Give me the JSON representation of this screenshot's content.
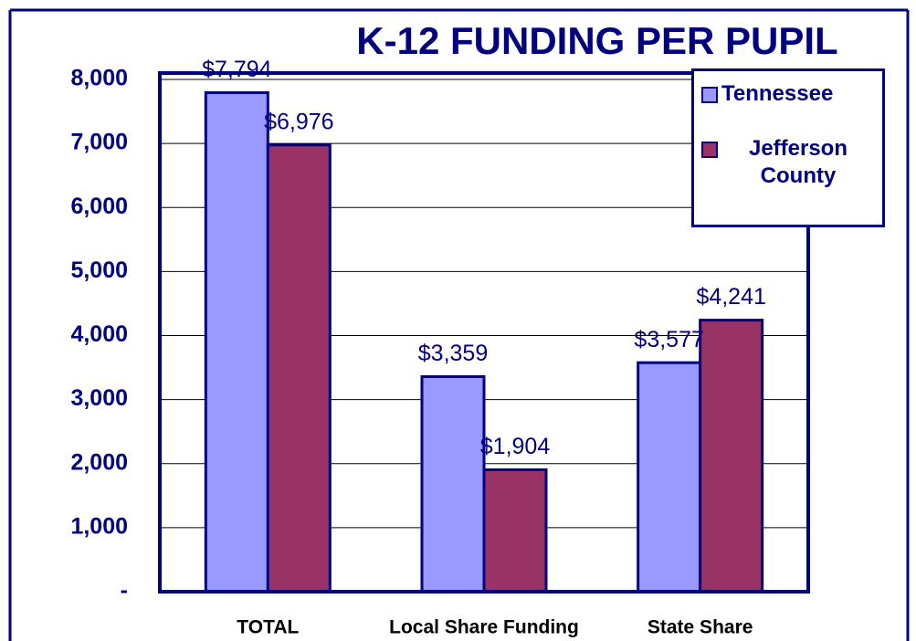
{
  "chart_data": {
    "type": "bar",
    "title": "K-12 FUNDING PER PUPIL",
    "categories": [
      "TOTAL",
      "Local Share Funding",
      "State Share"
    ],
    "series": [
      {
        "name": "Tennessee",
        "color": "#9999ff",
        "values": [
          7794,
          3359,
          3577
        ],
        "value_labels": [
          "$7,794",
          "$3,359",
          "$3,577"
        ]
      },
      {
        "name": "Jefferson County",
        "color": "#993366",
        "values": [
          6976,
          1904,
          4241
        ],
        "value_labels": [
          "$6,976",
          "$1,904",
          "$4,241"
        ]
      }
    ],
    "ylim": [
      0,
      8100
    ],
    "yticks": [
      {
        "value": 0,
        "label": "-"
      },
      {
        "value": 1000,
        "label": "1,000"
      },
      {
        "value": 2000,
        "label": "2,000"
      },
      {
        "value": 3000,
        "label": "3,000"
      },
      {
        "value": 4000,
        "label": "4,000"
      },
      {
        "value": 5000,
        "label": "5,000"
      },
      {
        "value": 6000,
        "label": "6,000"
      },
      {
        "value": 7000,
        "label": "7,000"
      },
      {
        "value": 8000,
        "label": "8,000"
      }
    ],
    "grid": true,
    "legend": "top-right"
  }
}
